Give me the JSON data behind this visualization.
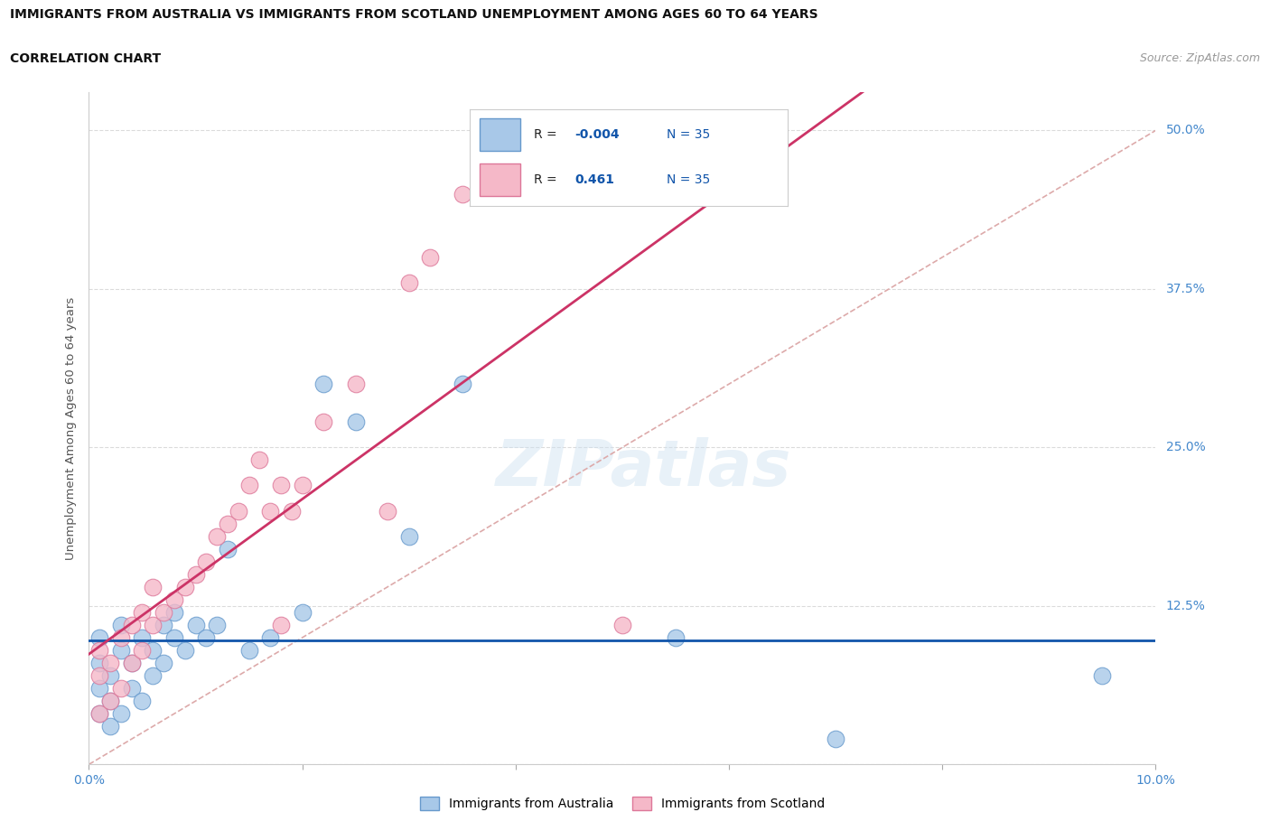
{
  "title_line1": "IMMIGRANTS FROM AUSTRALIA VS IMMIGRANTS FROM SCOTLAND UNEMPLOYMENT AMONG AGES 60 TO 64 YEARS",
  "title_line2": "CORRELATION CHART",
  "source": "Source: ZipAtlas.com",
  "ylabel": "Unemployment Among Ages 60 to 64 years",
  "xlim": [
    0.0,
    0.1
  ],
  "ylim": [
    0.0,
    0.53
  ],
  "yticks": [
    0.0,
    0.125,
    0.25,
    0.375,
    0.5
  ],
  "ytick_labels": [
    "",
    "12.5%",
    "25.0%",
    "37.5%",
    "50.0%"
  ],
  "australia_color": "#a8c8e8",
  "scotland_color": "#f5b8c8",
  "australia_edge": "#6699cc",
  "scotland_edge": "#dd7799",
  "regression_aus_color": "#1155aa",
  "regression_sco_color": "#cc3366",
  "reference_line_color": "#ddaaaa",
  "tick_color": "#4488cc",
  "grid_color": "#cccccc",
  "legend_R_aus": "-0.004",
  "legend_R_sco": "0.461",
  "legend_N": "35",
  "watermark": "ZIPatlas",
  "background_color": "#ffffff",
  "aus_regression_y": 0.098,
  "aus_x": [
    0.001,
    0.001,
    0.001,
    0.001,
    0.002,
    0.002,
    0.002,
    0.003,
    0.003,
    0.003,
    0.004,
    0.004,
    0.005,
    0.005,
    0.006,
    0.006,
    0.007,
    0.007,
    0.008,
    0.008,
    0.009,
    0.01,
    0.011,
    0.012,
    0.013,
    0.015,
    0.017,
    0.02,
    0.022,
    0.025,
    0.03,
    0.035,
    0.055,
    0.07,
    0.095
  ],
  "aus_y": [
    0.04,
    0.06,
    0.08,
    0.1,
    0.03,
    0.05,
    0.07,
    0.04,
    0.09,
    0.11,
    0.06,
    0.08,
    0.05,
    0.1,
    0.07,
    0.09,
    0.08,
    0.11,
    0.1,
    0.12,
    0.09,
    0.11,
    0.1,
    0.11,
    0.17,
    0.09,
    0.1,
    0.12,
    0.3,
    0.27,
    0.18,
    0.3,
    0.1,
    0.02,
    0.07
  ],
  "sco_x": [
    0.001,
    0.001,
    0.001,
    0.002,
    0.002,
    0.003,
    0.003,
    0.004,
    0.004,
    0.005,
    0.005,
    0.006,
    0.006,
    0.007,
    0.008,
    0.009,
    0.01,
    0.011,
    0.012,
    0.013,
    0.014,
    0.015,
    0.016,
    0.017,
    0.018,
    0.019,
    0.02,
    0.022,
    0.025,
    0.028,
    0.03,
    0.032,
    0.035,
    0.05,
    0.018
  ],
  "sco_y": [
    0.04,
    0.07,
    0.09,
    0.05,
    0.08,
    0.06,
    0.1,
    0.08,
    0.11,
    0.09,
    0.12,
    0.11,
    0.14,
    0.12,
    0.13,
    0.14,
    0.15,
    0.16,
    0.18,
    0.19,
    0.2,
    0.22,
    0.24,
    0.2,
    0.22,
    0.2,
    0.22,
    0.27,
    0.3,
    0.2,
    0.38,
    0.4,
    0.45,
    0.11,
    0.11
  ]
}
